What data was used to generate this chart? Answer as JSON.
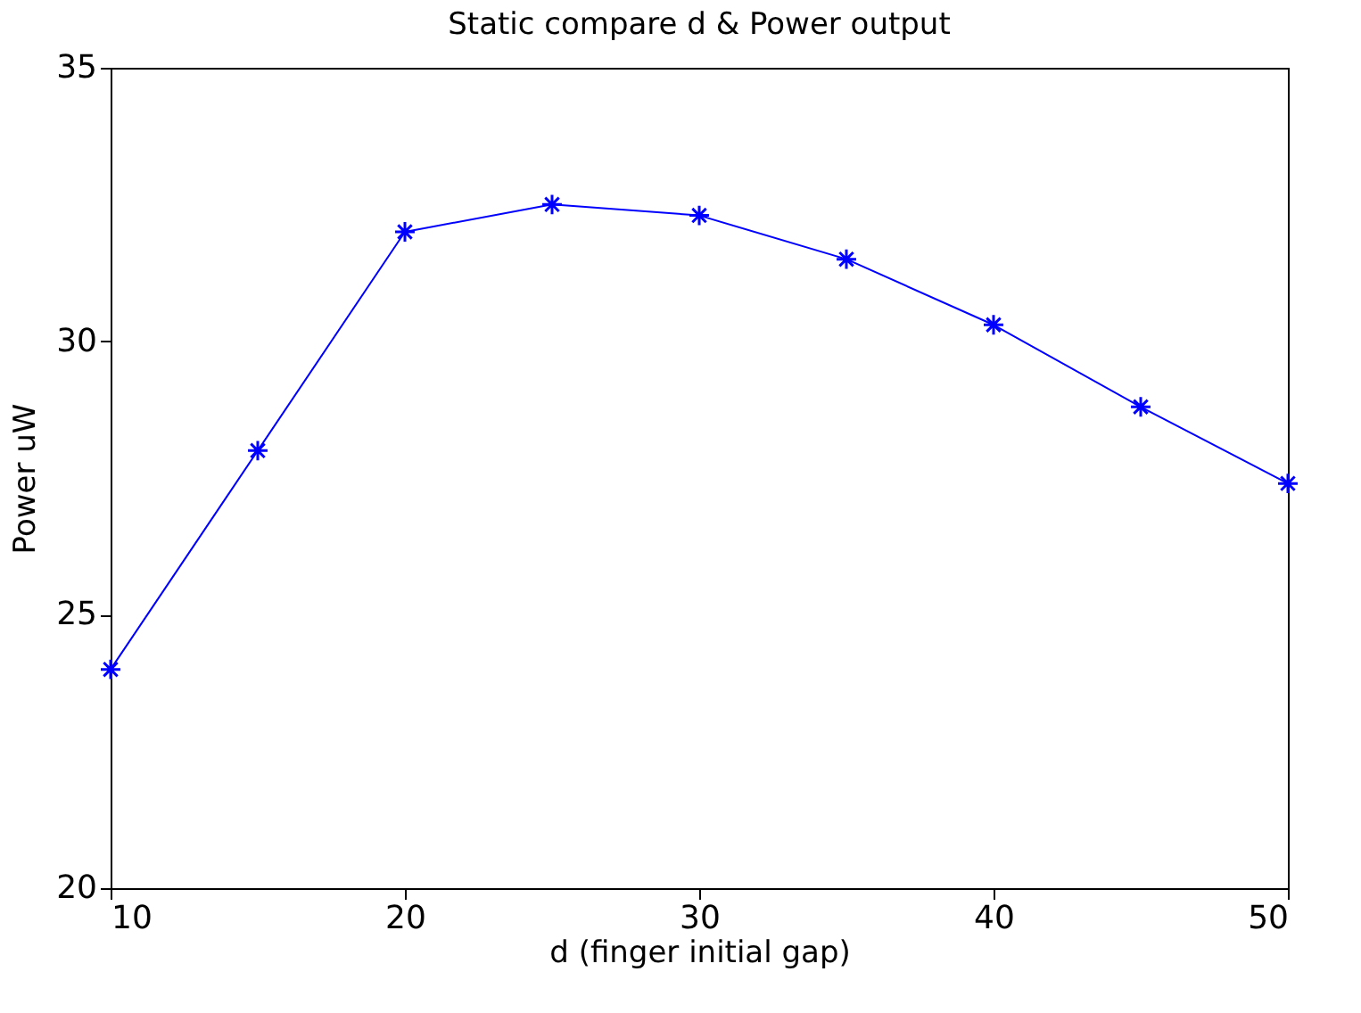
{
  "chart_data": {
    "type": "line",
    "title": "Static compare d & Power output",
    "xlabel": "d (finger initial gap)",
    "ylabel": "Power uW",
    "x": [
      10,
      15,
      20,
      25,
      30,
      35,
      40,
      45,
      50
    ],
    "series": [
      {
        "color": "#0000ff",
        "values": [
          24.0,
          28.0,
          32.0,
          32.5,
          32.3,
          31.5,
          30.3,
          28.8,
          27.4
        ]
      }
    ],
    "xlim": [
      10,
      50
    ],
    "xticks": [
      10,
      20,
      30,
      40,
      50
    ],
    "ylim": [
      20,
      35
    ],
    "yticks": [
      20,
      25,
      30,
      35
    ],
    "grid": false,
    "marker": "cross",
    "line_style": "solid"
  }
}
